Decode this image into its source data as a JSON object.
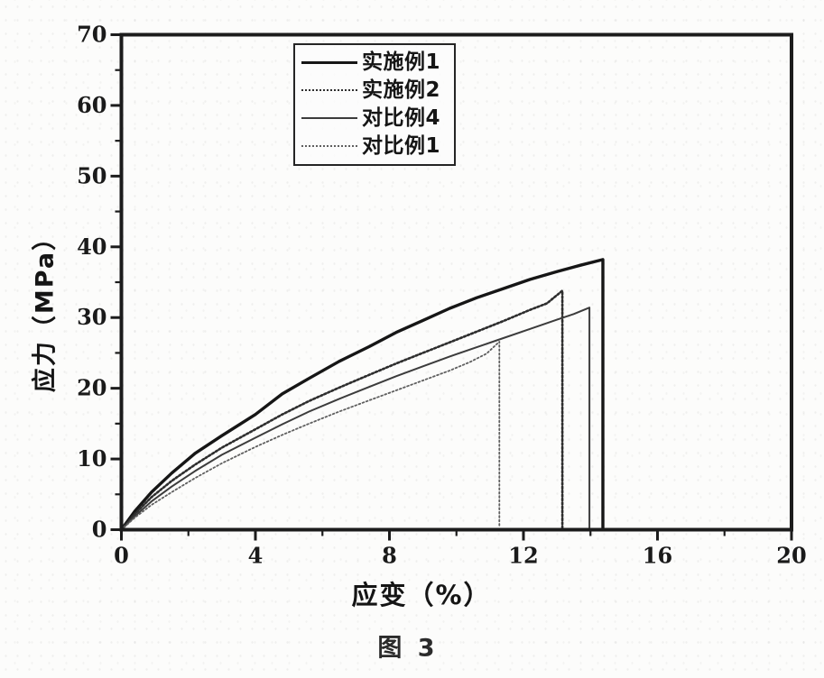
{
  "figure": {
    "caption": "图 3"
  },
  "chart_data": {
    "type": "line",
    "title": "",
    "xlabel": "应变（%）",
    "ylabel": "应力（MPa）",
    "xlim": [
      0,
      20
    ],
    "ylim": [
      0,
      70
    ],
    "xticks": [
      0,
      4,
      8,
      12,
      16,
      20
    ],
    "xminorticks": [
      2,
      6,
      10,
      14,
      18
    ],
    "yticks": [
      0,
      10,
      20,
      30,
      40,
      50,
      60,
      70
    ],
    "yminorticks": [
      5,
      15,
      25,
      35,
      45,
      55,
      65
    ],
    "grid": false,
    "legend_position": "top-center-inside",
    "frame_color": "#1c1c1c",
    "tick_color": "#1c1c1c",
    "tick_label_color": "#1a1a1a",
    "background_color": "#fcfcfb",
    "series": [
      {
        "name": "实施例1",
        "legend_style": "thick-solid",
        "color": "#161616",
        "width": 3.4,
        "dash": "none",
        "peak_stress_MPa": 38.2,
        "break_strain_pct": 14.4,
        "points": [
          [
            0,
            0
          ],
          [
            0.4,
            2.6
          ],
          [
            0.9,
            5.3
          ],
          [
            1.5,
            8.0
          ],
          [
            2.2,
            10.8
          ],
          [
            3,
            13.3
          ],
          [
            4,
            16.3
          ],
          [
            4.8,
            19.2
          ],
          [
            5.6,
            21.4
          ],
          [
            6.5,
            23.8
          ],
          [
            7.4,
            25.9
          ],
          [
            8.2,
            27.9
          ],
          [
            9,
            29.6
          ],
          [
            9.8,
            31.3
          ],
          [
            10.6,
            32.8
          ],
          [
            11.4,
            34.1
          ],
          [
            12.2,
            35.4
          ],
          [
            13,
            36.5
          ],
          [
            13.7,
            37.4
          ],
          [
            14.37,
            38.2
          ],
          [
            14.37,
            0.3
          ]
        ]
      },
      {
        "name": "实施例2",
        "legend_style": "thick-dotted",
        "color": "#2e2e2e",
        "width": 2.6,
        "dash": "2 2.4",
        "peak_stress_MPa": 33.8,
        "break_strain_pct": 13.2,
        "points": [
          [
            0,
            0
          ],
          [
            0.4,
            2.2
          ],
          [
            0.9,
            4.6
          ],
          [
            1.5,
            6.9
          ],
          [
            2.2,
            9.2
          ],
          [
            3,
            11.6
          ],
          [
            4,
            14.2
          ],
          [
            4.8,
            16.3
          ],
          [
            5.6,
            18.2
          ],
          [
            6.5,
            20.1
          ],
          [
            7.4,
            21.9
          ],
          [
            8.2,
            23.5
          ],
          [
            9,
            25.0
          ],
          [
            9.8,
            26.5
          ],
          [
            10.6,
            28.0
          ],
          [
            11.4,
            29.5
          ],
          [
            12.2,
            31.1
          ],
          [
            12.7,
            32.0
          ],
          [
            13.16,
            33.8
          ],
          [
            13.16,
            0.3
          ]
        ]
      },
      {
        "name": "对比例4",
        "legend_style": "thin-solid",
        "color": "#3c3c3c",
        "width": 2.0,
        "dash": "none",
        "peak_stress_MPa": 31.4,
        "break_strain_pct": 14.0,
        "points": [
          [
            0,
            0
          ],
          [
            0.4,
            1.9
          ],
          [
            0.9,
            4.0
          ],
          [
            1.5,
            6.1
          ],
          [
            2.2,
            8.3
          ],
          [
            3,
            10.6
          ],
          [
            4,
            13.0
          ],
          [
            4.8,
            14.9
          ],
          [
            5.6,
            16.7
          ],
          [
            6.5,
            18.5
          ],
          [
            7.4,
            20.2
          ],
          [
            8.2,
            21.7
          ],
          [
            9,
            23.1
          ],
          [
            9.8,
            24.5
          ],
          [
            10.6,
            25.8
          ],
          [
            11.4,
            27.1
          ],
          [
            12.2,
            28.4
          ],
          [
            13,
            29.7
          ],
          [
            13.5,
            30.5
          ],
          [
            13.97,
            31.4
          ],
          [
            13.97,
            0.3
          ]
        ]
      },
      {
        "name": "对比例1",
        "legend_style": "thin-dotted",
        "color": "#5f5f5f",
        "width": 1.8,
        "dash": "1.8 2.6",
        "peak_stress_MPa": 26.6,
        "break_strain_pct": 11.3,
        "points": [
          [
            0,
            0
          ],
          [
            0.4,
            1.7
          ],
          [
            0.9,
            3.5
          ],
          [
            1.5,
            5.3
          ],
          [
            2.2,
            7.3
          ],
          [
            3,
            9.4
          ],
          [
            4,
            11.7
          ],
          [
            4.8,
            13.4
          ],
          [
            5.6,
            15.0
          ],
          [
            6.5,
            16.7
          ],
          [
            7.4,
            18.3
          ],
          [
            8.2,
            19.7
          ],
          [
            9,
            21.1
          ],
          [
            9.8,
            22.5
          ],
          [
            10.4,
            23.7
          ],
          [
            10.9,
            24.9
          ],
          [
            11.28,
            26.6
          ],
          [
            11.28,
            0.3
          ]
        ]
      }
    ]
  }
}
